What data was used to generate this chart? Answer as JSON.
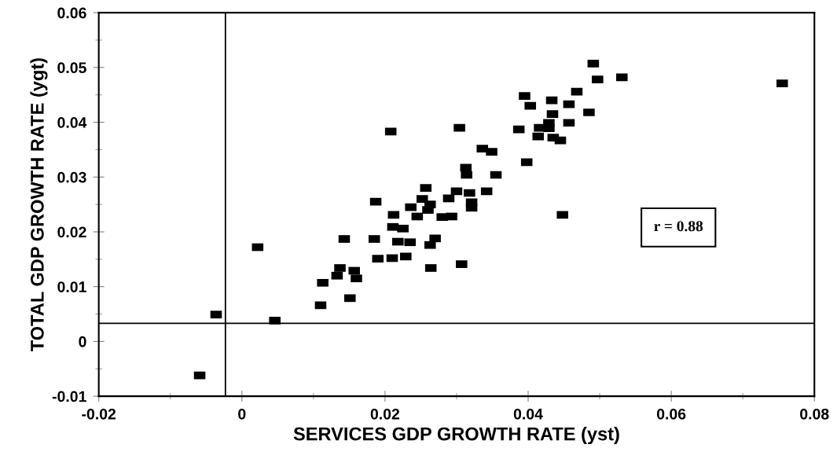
{
  "chart_data": {
    "type": "scatter",
    "xlabel": "SERVICES GDP GROWTH RATE (yst)",
    "ylabel": "TOTAL GDP GROWTH RATE (ygt)",
    "x": [
      0.0022,
      -0.0036,
      0.0046,
      -0.0059,
      0.011,
      0.0151,
      0.0113,
      0.0133,
      0.0137,
      0.0157,
      0.016,
      0.0143,
      0.0185,
      0.019,
      0.021,
      0.0229,
      0.0218,
      0.0235,
      0.0211,
      0.0225,
      0.0263,
      0.027,
      0.0264,
      0.0307,
      0.0208,
      0.0304,
      0.0187,
      0.0212,
      0.0257,
      0.0252,
      0.0236,
      0.0263,
      0.026,
      0.0245,
      0.028,
      0.0293,
      0.0289,
      0.03,
      0.0318,
      0.0313,
      0.0314,
      0.0321,
      0.0321,
      0.0491,
      0.0497,
      0.0531,
      0.0755,
      0.0468,
      0.0395,
      0.0403,
      0.0433,
      0.0457,
      0.0485,
      0.0434,
      0.0457,
      0.0387,
      0.0429,
      0.0416,
      0.0429,
      0.0414,
      0.0435,
      0.0445,
      0.0336,
      0.0349,
      0.0398,
      0.0355,
      0.0342,
      0.0448
    ],
    "series": [
      {
        "color": "#000000",
        "values": [
          0.0172,
          0.0049,
          0.0038,
          -0.0062,
          0.0066,
          0.0079,
          0.0107,
          0.012,
          0.0134,
          0.0129,
          0.0115,
          0.0187,
          0.0187,
          0.0151,
          0.0152,
          0.0155,
          0.0182,
          0.0181,
          0.0209,
          0.0206,
          0.0176,
          0.0188,
          0.0134,
          0.0141,
          0.0383,
          0.039,
          0.0255,
          0.0231,
          0.028,
          0.026,
          0.0245,
          0.025,
          0.024,
          0.0228,
          0.0227,
          0.0228,
          0.0261,
          0.0274,
          0.0271,
          0.0317,
          0.0304,
          0.0254,
          0.0244,
          0.0507,
          0.0478,
          0.0482,
          0.0471,
          0.0456,
          0.0448,
          0.043,
          0.044,
          0.0433,
          0.0418,
          0.0415,
          0.0399,
          0.0387,
          0.0399,
          0.039,
          0.0389,
          0.0374,
          0.0372,
          0.0367,
          0.0352,
          0.0346,
          0.0327,
          0.0304,
          0.0274,
          0.0231
        ]
      }
    ],
    "marker": "square",
    "xlim": [
      -0.02,
      0.08
    ],
    "xticks": [
      -0.02,
      0,
      0.02,
      0.04,
      0.06,
      0.08
    ],
    "ylim": [
      -0.01,
      0.06
    ],
    "yticks": [
      -0.01,
      0,
      0.01,
      0.02,
      0.03,
      0.04,
      0.05,
      0.06
    ],
    "ref_lines": [
      {
        "axis": "y",
        "value": 0.0033,
        "color": "#000000"
      },
      {
        "axis": "x",
        "value": -0.0023,
        "color": "#000000"
      }
    ],
    "annotations": [
      "r = 0.88"
    ],
    "grid": false,
    "legend": false
  }
}
